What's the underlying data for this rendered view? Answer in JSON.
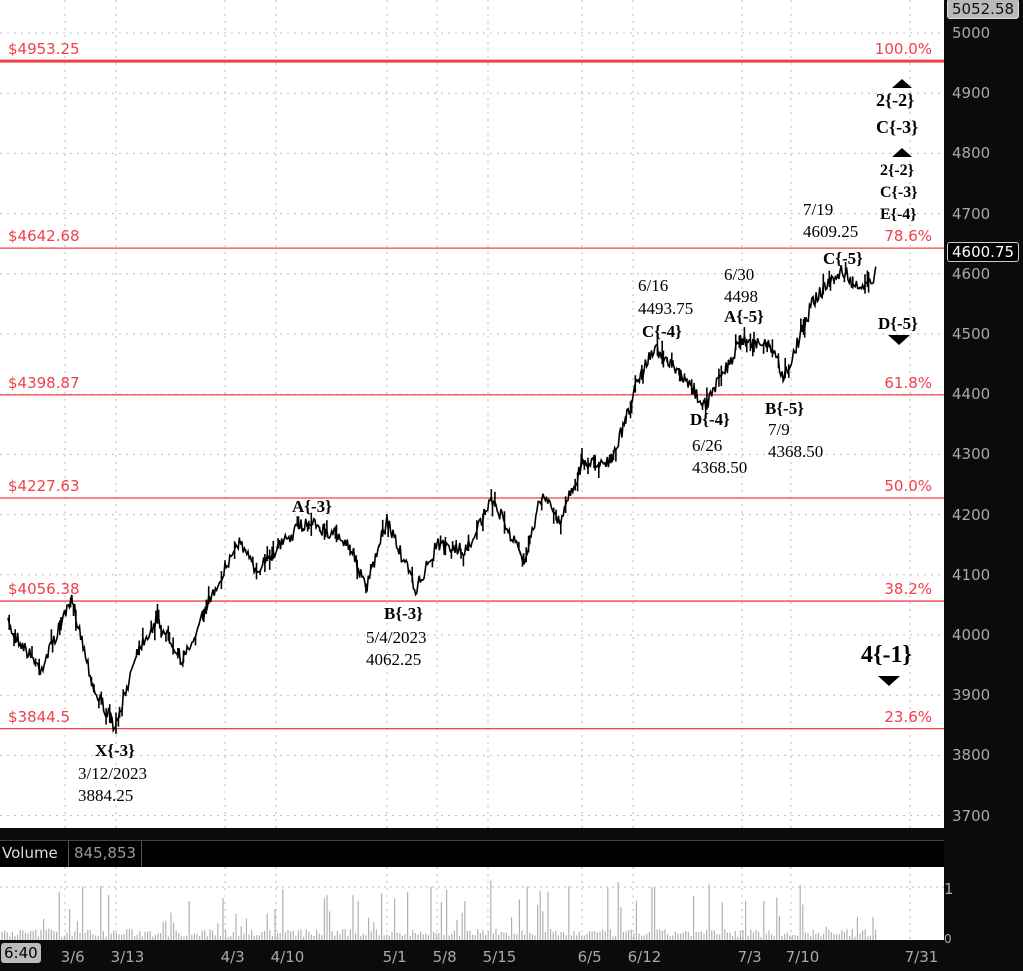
{
  "chart_data": {
    "type": "line",
    "ylim": [
      3650,
      5060
    ],
    "y_ticks": [
      "5000",
      "4900",
      "4800",
      "4700",
      "4600",
      "4500",
      "4400",
      "4300",
      "4200",
      "4100",
      "4000",
      "3900",
      "3800",
      "3700"
    ],
    "x_ticks": [
      "3/6",
      "3/13",
      "4/3",
      "4/10",
      "5/1",
      "5/8",
      "5/15",
      "6/5",
      "6/12",
      "7/3",
      "7/10",
      "7/31"
    ],
    "grid": true,
    "top_price_badge": "5052.58",
    "last_price_badge": "4600.75",
    "time_badge": "6:40",
    "price_path": [
      [
        "2/27",
        4017
      ],
      [
        "3/3",
        3942
      ],
      [
        "3/7",
        4058
      ],
      [
        "3/10",
        3909
      ],
      [
        "3/13",
        3845
      ],
      [
        "3/17",
        3975
      ],
      [
        "3/21",
        4025
      ],
      [
        "3/26",
        3958
      ],
      [
        "3/31",
        4058
      ],
      [
        "4/5",
        4158
      ],
      [
        "4/7",
        4108
      ],
      [
        "4/16",
        4191
      ],
      [
        "4/24",
        4150
      ],
      [
        "4/27",
        4075
      ],
      [
        "5/1",
        4191
      ],
      [
        "5/5",
        4075
      ],
      [
        "5/8",
        4150
      ],
      [
        "5/12",
        4141
      ],
      [
        "5/16",
        4224
      ],
      [
        "5/23",
        4125
      ],
      [
        "5/27",
        4232
      ],
      [
        "5/31",
        4191
      ],
      [
        "6/5",
        4282
      ],
      [
        "6/9",
        4290
      ],
      [
        "6/11",
        4357
      ],
      [
        "6/13",
        4423
      ],
      [
        "6/16",
        4477
      ],
      [
        "6/21",
        4432
      ],
      [
        "6/26",
        4382
      ],
      [
        "7/3",
        4490
      ],
      [
        "7/7",
        4482
      ],
      [
        "7/9",
        4427
      ],
      [
        "7/12",
        4506
      ],
      [
        "7/14",
        4556
      ],
      [
        "7/19",
        4606
      ],
      [
        "7/22",
        4570
      ],
      [
        "7/25",
        4601
      ]
    ],
    "fib_levels": [
      {
        "price": 4953.25,
        "label": "$4953.25",
        "pct": "100.0%"
      },
      {
        "price": 4642.68,
        "label": "$4642.68",
        "pct": "78.6%"
      },
      {
        "price": 4398.87,
        "label": "$4398.87",
        "pct": "61.8%"
      },
      {
        "price": 4227.63,
        "label": "$4227.63",
        "pct": "50.0%"
      },
      {
        "price": 4056.38,
        "label": "$4056.38",
        "pct": "38.2%"
      },
      {
        "price": 3844.5,
        "label": "$3844.5",
        "pct": "23.6%"
      }
    ],
    "fib_color": "#f0404a",
    "volume": {
      "label": "Volume",
      "value": "845,853",
      "y_ticks": [
        "1",
        "0"
      ]
    }
  },
  "annotations": {
    "x3": {
      "wave": "X{-3}",
      "date": "3/12/2023",
      "price": "3884.25"
    },
    "a3": {
      "wave": "A{-3}"
    },
    "b3": {
      "wave": "B{-3}",
      "date": "5/4/2023",
      "price": "4062.25"
    },
    "c4": {
      "wave": "C{-4}",
      "date": "6/16",
      "price": "4493.75"
    },
    "d4": {
      "wave": "D{-4}",
      "date": "6/26",
      "price": "4368.50"
    },
    "a5": {
      "wave": "A{-5}",
      "date": "6/30",
      "price": "4498"
    },
    "b5": {
      "wave": "B{-5}",
      "date": "7/9",
      "price": "4368.50"
    },
    "c5": {
      "wave": "C{-5}",
      "date": "7/19",
      "price": "4609.25"
    },
    "d5": {
      "wave": "D{-5}"
    },
    "t1": {
      "l1": "2{-2}",
      "l2": "C{-3}"
    },
    "t2": {
      "l1": "2{-2}",
      "l2": "C{-3}",
      "l3": "E{-4}"
    },
    "w4": {
      "wave": "4{-1}"
    }
  }
}
